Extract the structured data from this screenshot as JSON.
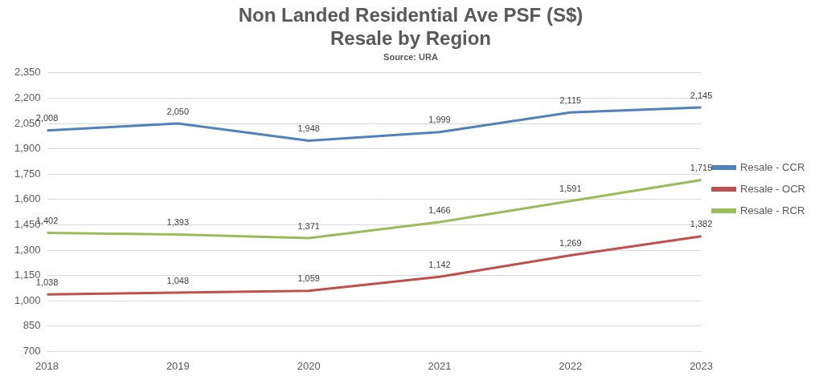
{
  "chart_data": {
    "type": "line",
    "title": [
      "Non Landed Residential Ave PSF (S$)",
      "Resale by Region"
    ],
    "subtitle": "Source: URA",
    "categories": [
      "2018",
      "2019",
      "2020",
      "2021",
      "2022",
      "2023"
    ],
    "series": [
      {
        "name": "Resale - CCR",
        "color": "#4f81bd",
        "values": [
          2008,
          2050,
          1948,
          1999,
          2115,
          2145
        ],
        "value_labels": [
          "2,008",
          "2,050",
          "1,948",
          "1,999",
          "2,115",
          "2,145"
        ]
      },
      {
        "name": "Resale - OCR",
        "color": "#c0504d",
        "values": [
          1038,
          1048,
          1059,
          1142,
          1269,
          1382
        ],
        "value_labels": [
          "1,038",
          "1,048",
          "1,059",
          "1,142",
          "1,269",
          "1,382"
        ]
      },
      {
        "name": "Resale - RCR",
        "color": "#9bbb59",
        "values": [
          1402,
          1393,
          1371,
          1466,
          1591,
          1715
        ],
        "value_labels": [
          "1,402",
          "1,393",
          "1,371",
          "1,466",
          "1,591",
          "1,715"
        ]
      }
    ],
    "ylim": [
      700,
      2350
    ],
    "yticks": [
      700,
      850,
      {
        "value": 1000,
        "label": "1,000"
      },
      {
        "value": 1150,
        "label": "1,150"
      },
      {
        "value": 1300,
        "label": "1,300"
      },
      {
        "value": 1450,
        "label": "1,450"
      },
      {
        "value": 1600,
        "label": "1,600"
      },
      {
        "value": 1750,
        "label": "1,750"
      },
      {
        "value": 1900,
        "label": "1,900"
      },
      {
        "value": 2050,
        "label": "2,050"
      },
      {
        "value": 2200,
        "label": "2,200"
      },
      {
        "value": 2350,
        "label": "2,350"
      }
    ],
    "grid": true,
    "legend": "right",
    "data_labels": true
  }
}
